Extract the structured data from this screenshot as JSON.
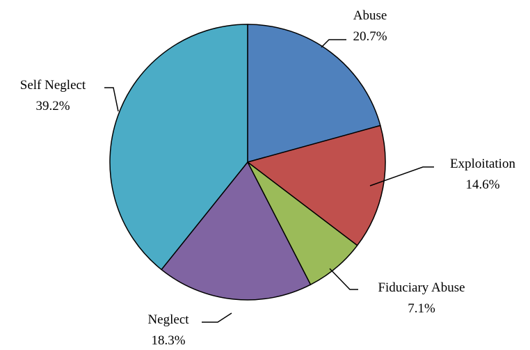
{
  "chart_data": {
    "type": "pie",
    "title": "",
    "start_angle_deg": 0,
    "direction": "clockwise",
    "slices": [
      {
        "label": "Abuse",
        "value": 20.7,
        "value_label": "20.7%",
        "color": "#4F81BD"
      },
      {
        "label": "Exploitation",
        "value": 14.6,
        "value_label": "14.6%",
        "color": "#C0504D"
      },
      {
        "label": "Fiduciary Abuse",
        "value": 7.1,
        "value_label": "7.1%",
        "color": "#9BBB59"
      },
      {
        "label": "Neglect",
        "value": 18.3,
        "value_label": "18.3%",
        "color": "#8064A2"
      },
      {
        "label": "Self Neglect",
        "value": 39.2,
        "value_label": "39.2%",
        "color": "#4BACC6"
      }
    ],
    "slice_border_color": "#000000",
    "legend": "none"
  }
}
